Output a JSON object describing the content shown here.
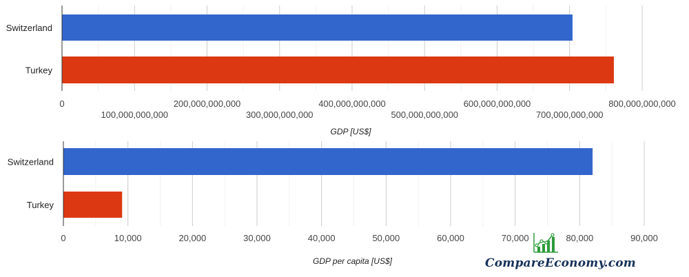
{
  "chart_data": [
    {
      "type": "bar",
      "orientation": "horizontal",
      "categories": [
        "Switzerland",
        "Turkey"
      ],
      "values": [
        704000000000,
        761000000000
      ],
      "colors": [
        "#3366cc",
        "#dc3912"
      ],
      "xlabel": "GDP [US$]",
      "ylabel": "",
      "xlim": [
        0,
        800000000000
      ],
      "ticks": [
        0,
        100000000000,
        200000000000,
        300000000000,
        400000000000,
        500000000000,
        600000000000,
        700000000000,
        800000000000
      ],
      "tick_labels": [
        "0",
        "100,000,000,000",
        "200,000,000,000",
        "300,000,000,000",
        "400,000,000,000",
        "500,000,000,000",
        "600,000,000,000",
        "700,000,000,000",
        "800,000,000,000"
      ],
      "grid": true
    },
    {
      "type": "bar",
      "orientation": "horizontal",
      "categories": [
        "Switzerland",
        "Turkey"
      ],
      "values": [
        82000,
        9100
      ],
      "colors": [
        "#3366cc",
        "#dc3912"
      ],
      "xlabel": "GDP per capita [US$]",
      "ylabel": "",
      "xlim": [
        0,
        90000
      ],
      "ticks": [
        0,
        10000,
        20000,
        30000,
        40000,
        50000,
        60000,
        70000,
        80000,
        90000
      ],
      "tick_labels": [
        "0",
        "10,000",
        "20,000",
        "30,000",
        "40,000",
        "50,000",
        "60,000",
        "70,000",
        "80,000",
        "90,000"
      ],
      "grid": true
    }
  ],
  "branding": {
    "text": "CompareEconomy.com",
    "icon": "rising-chart-logo-icon",
    "color": "#16325a",
    "icon_color": "#2e9c3a"
  }
}
